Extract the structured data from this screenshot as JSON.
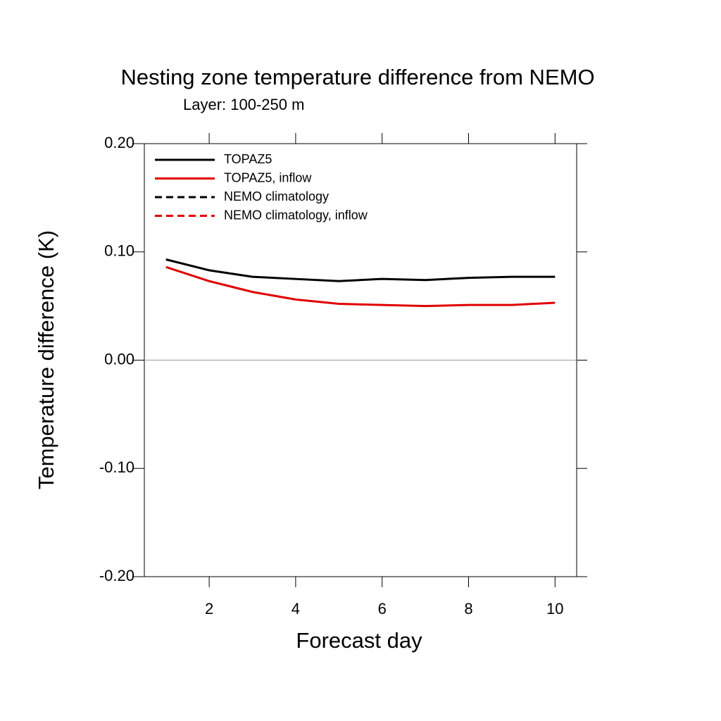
{
  "chart_data": {
    "type": "line",
    "title": "Nesting zone temperature difference from NEMO",
    "subtitle": "Layer: 100-250 m",
    "x_label": "Forecast day",
    "y_label": "Temperature difference (K)",
    "x": [
      1,
      2,
      3,
      4,
      5,
      6,
      7,
      8,
      9,
      10
    ],
    "series": [
      {
        "name": "TOPAZ5",
        "color": "#000000",
        "dash": false,
        "values": [
          0.093,
          0.083,
          0.077,
          0.075,
          0.073,
          0.075,
          0.074,
          0.076,
          0.077,
          0.077
        ]
      },
      {
        "name": "TOPAZ5, inflow",
        "color": "#e00000",
        "dash": false,
        "values": [
          0.086,
          0.073,
          0.063,
          0.056,
          0.052,
          0.051,
          0.05,
          0.051,
          0.051,
          0.053
        ]
      },
      {
        "name": "NEMO climatology",
        "color": "#000000",
        "dash": true,
        "values": [
          null,
          null,
          null,
          null,
          null,
          null,
          null,
          null,
          null,
          null
        ]
      },
      {
        "name": "NEMO climatology, inflow",
        "color": "#e00000",
        "dash": true,
        "values": [
          null,
          null,
          null,
          null,
          null,
          null,
          null,
          null,
          null,
          null
        ]
      }
    ],
    "xlim": [
      0.5,
      10.5
    ],
    "xticks": [
      2,
      4,
      6,
      8,
      10
    ],
    "ylim": [
      -0.2,
      0.2
    ],
    "yticks": [
      {
        "value": 0.2,
        "label": "0.20"
      },
      {
        "value": 0.1,
        "label": "0.10"
      },
      {
        "value": 0,
        "label": "0.00"
      },
      {
        "value": -0.1,
        "label": "-0.10"
      },
      {
        "value": -0.2,
        "label": "-0.20"
      }
    ],
    "reference_line": 0,
    "legend": "top-left"
  }
}
